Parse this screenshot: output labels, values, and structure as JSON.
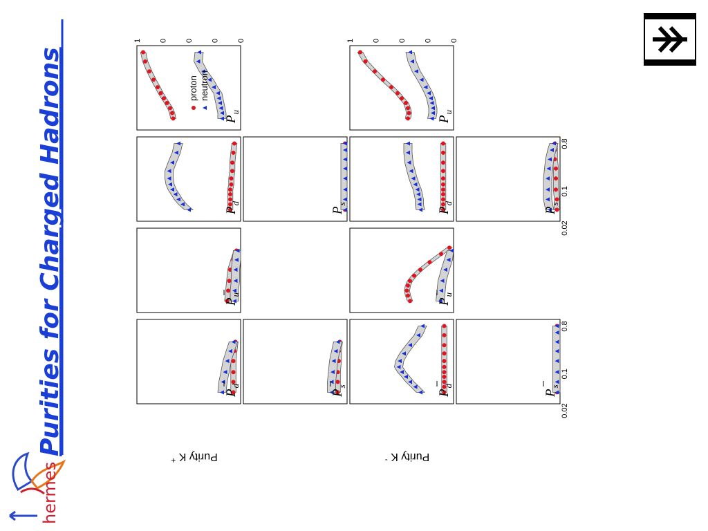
{
  "slide": {
    "title": "Purities for Charged Hadrons",
    "logo_text": "hermes"
  },
  "colors": {
    "title": "#1a3fd6",
    "proton": "#e0141e",
    "neutron": "#1530d8",
    "band": "#d4d4d4",
    "logo_orange": "#e8741a",
    "logo_red": "#cc2030",
    "logo_blue": "#2a49c8"
  },
  "chart_data": {
    "type": "scatter",
    "x_scale": "log",
    "xlim": [
      0.02,
      0.8
    ],
    "ylim": [
      0,
      1
    ],
    "x_tick_labels": [
      "0.02",
      "0.1",
      "0.8"
    ],
    "y_tick_labels": [
      "0",
      "0.25",
      "0.5",
      "0.75",
      "1"
    ],
    "x_tick_values": [
      0.02,
      0.1,
      0.8
    ],
    "y_tick_values": [
      0,
      0.25,
      0.5,
      0.75,
      1
    ],
    "legend": [
      "proton",
      "neutron"
    ],
    "rows": [
      {
        "ylabel": "Purity K",
        "charge": "+",
        "panels": [
          {
            "label": "P",
            "sub": "u",
            "bar": false,
            "series": [
              {
                "name": "proton",
                "marker": "circle",
                "x": [
                  0.033,
                  0.042,
                  0.052,
                  0.065,
                  0.08,
                  0.1,
                  0.13,
                  0.18,
                  0.26,
                  0.4,
                  0.6
                ],
                "y": [
                  0.65,
                  0.66,
                  0.68,
                  0.71,
                  0.74,
                  0.77,
                  0.8,
                  0.84,
                  0.88,
                  0.92,
                  0.94
                ]
              },
              {
                "name": "neutron",
                "marker": "triangle",
                "x": [
                  0.033,
                  0.042,
                  0.052,
                  0.065,
                  0.08,
                  0.1,
                  0.13,
                  0.18,
                  0.26,
                  0.4,
                  0.6
                ],
                "y": [
                  0.18,
                  0.18,
                  0.19,
                  0.2,
                  0.21,
                  0.22,
                  0.26,
                  0.3,
                  0.36,
                  0.41,
                  0.4
                ]
              }
            ]
          },
          {
            "label": "P",
            "sub": "d",
            "bar": false,
            "series": [
              {
                "name": "proton",
                "marker": "circle",
                "x": [
                  0.033,
                  0.042,
                  0.052,
                  0.065,
                  0.08,
                  0.1,
                  0.13,
                  0.18,
                  0.26,
                  0.4,
                  0.6
                ],
                "y": [
                  0.1,
                  0.1,
                  0.1,
                  0.1,
                  0.1,
                  0.09,
                  0.09,
                  0.08,
                  0.08,
                  0.07,
                  0.06
                ]
              },
              {
                "name": "neutron",
                "marker": "triangle",
                "x": [
                  0.033,
                  0.042,
                  0.052,
                  0.065,
                  0.08,
                  0.1,
                  0.13,
                  0.18,
                  0.26,
                  0.4,
                  0.6
                ],
                "y": [
                  0.5,
                  0.56,
                  0.6,
                  0.63,
                  0.66,
                  0.68,
                  0.69,
                  0.69,
                  0.66,
                  0.62,
                  0.6
                ]
              }
            ]
          },
          {
            "label": "P",
            "sub": "u",
            "bar": true,
            "series": [
              {
                "name": "proton",
                "marker": "circle",
                "x": [
                  0.033,
                  0.052,
                  0.08,
                  0.13,
                  0.2,
                  0.3
                ],
                "y": [
                  0.13,
                  0.12,
                  0.11,
                  0.1,
                  0.07,
                  0.04
                ]
              },
              {
                "name": "neutron",
                "marker": "triangle",
                "x": [
                  0.033,
                  0.052,
                  0.08,
                  0.13,
                  0.2,
                  0.3
                ],
                "y": [
                  0.06,
                  0.06,
                  0.05,
                  0.05,
                  0.04,
                  0.03
                ]
              }
            ]
          },
          {
            "label": "P",
            "sub": "d",
            "bar": true,
            "series": [
              {
                "name": "proton",
                "marker": "circle",
                "x": [
                  0.033,
                  0.052,
                  0.08,
                  0.13,
                  0.2,
                  0.3
                ],
                "y": [
                  0.07,
                  0.07,
                  0.07,
                  0.07,
                  0.06,
                  0.05
                ]
              },
              {
                "name": "neutron",
                "marker": "triangle",
                "x": [
                  0.033,
                  0.052,
                  0.08,
                  0.13,
                  0.2,
                  0.3
                ],
                "y": [
                  0.18,
                  0.17,
                  0.15,
                  0.13,
                  0.1,
                  0.07
                ]
              }
            ]
          }
        ]
      },
      {
        "ylabel": "",
        "charge": "",
        "panels": [
          null,
          {
            "label": "P",
            "sub": "s",
            "bar": false,
            "series": [
              {
                "name": "proton",
                "marker": "circle",
                "x": [
                  0.033,
                  0.052,
                  0.08,
                  0.13,
                  0.2,
                  0.3,
                  0.45,
                  0.6
                ],
                "y": [
                  0.02,
                  0.02,
                  0.02,
                  0.02,
                  0.02,
                  0.02,
                  0.02,
                  0.02
                ]
              },
              {
                "name": "neutron",
                "marker": "triangle",
                "x": [
                  0.033,
                  0.052,
                  0.08,
                  0.13,
                  0.2,
                  0.3,
                  0.45,
                  0.6
                ],
                "y": [
                  0.02,
                  0.02,
                  0.02,
                  0.02,
                  0.02,
                  0.02,
                  0.02,
                  0.02
                ]
              }
            ]
          },
          null,
          {
            "label": "P",
            "sub": "s",
            "bar": true,
            "series": [
              {
                "name": "proton",
                "marker": "circle",
                "x": [
                  0.033,
                  0.052,
                  0.08,
                  0.13,
                  0.2,
                  0.3
                ],
                "y": [
                  0.09,
                  0.09,
                  0.09,
                  0.08,
                  0.08,
                  0.07
                ]
              },
              {
                "name": "neutron",
                "marker": "triangle",
                "x": [
                  0.033,
                  0.052,
                  0.08,
                  0.13,
                  0.2,
                  0.3
                ],
                "y": [
                  0.15,
                  0.15,
                  0.14,
                  0.13,
                  0.11,
                  0.09
                ]
              }
            ]
          }
        ]
      },
      {
        "ylabel": "Purity K",
        "charge": "-",
        "panels": [
          {
            "label": "P",
            "sub": "u",
            "bar": false,
            "series": [
              {
                "name": "proton",
                "marker": "circle",
                "x": [
                  0.033,
                  0.042,
                  0.052,
                  0.065,
                  0.08,
                  0.1,
                  0.13,
                  0.18,
                  0.26,
                  0.4,
                  0.6
                ],
                "y": [
                  0.44,
                  0.43,
                  0.44,
                  0.46,
                  0.5,
                  0.54,
                  0.6,
                  0.68,
                  0.76,
                  0.85,
                  0.9
                ]
              },
              {
                "name": "neutron",
                "marker": "triangle",
                "x": [
                  0.033,
                  0.042,
                  0.052,
                  0.065,
                  0.08,
                  0.1,
                  0.13,
                  0.18,
                  0.26,
                  0.4,
                  0.6
                ],
                "y": [
                  0.21,
                  0.2,
                  0.2,
                  0.21,
                  0.22,
                  0.24,
                  0.27,
                  0.31,
                  0.36,
                  0.4,
                  0.42
                ]
              }
            ]
          },
          {
            "label": "P",
            "sub": "d",
            "bar": false,
            "series": [
              {
                "name": "proton",
                "marker": "circle",
                "x": [
                  0.033,
                  0.042,
                  0.052,
                  0.065,
                  0.08,
                  0.1,
                  0.13,
                  0.18,
                  0.26,
                  0.4,
                  0.6
                ],
                "y": [
                  0.1,
                  0.1,
                  0.1,
                  0.1,
                  0.1,
                  0.1,
                  0.1,
                  0.1,
                  0.1,
                  0.1,
                  0.1
                ]
              },
              {
                "name": "neutron",
                "marker": "triangle",
                "x": [
                  0.033,
                  0.042,
                  0.052,
                  0.065,
                  0.08,
                  0.1,
                  0.13,
                  0.18,
                  0.26,
                  0.4,
                  0.6
                ],
                "y": [
                  0.32,
                  0.33,
                  0.33,
                  0.34,
                  0.35,
                  0.37,
                  0.39,
                  0.41,
                  0.43,
                  0.44,
                  0.44
                ]
              }
            ]
          },
          {
            "label": "P",
            "sub": "u",
            "bar": true,
            "series": [
              {
                "name": "proton",
                "marker": "circle",
                "x": [
                  0.033,
                  0.042,
                  0.052,
                  0.065,
                  0.08,
                  0.1,
                  0.13,
                  0.18,
                  0.26,
                  0.34
                ],
                "y": [
                  0.42,
                  0.44,
                  0.45,
                  0.44,
                  0.42,
                  0.38,
                  0.32,
                  0.23,
                  0.12,
                  0.04
                ]
              },
              {
                "name": "neutron",
                "marker": "triangle",
                "x": [
                  0.033,
                  0.052,
                  0.08,
                  0.13,
                  0.2,
                  0.3
                ],
                "y": [
                  0.13,
                  0.12,
                  0.11,
                  0.08,
                  0.05,
                  0.02
                ]
              }
            ]
          },
          {
            "label": "P",
            "sub": "d",
            "bar": true,
            "series": [
              {
                "name": "proton",
                "marker": "circle",
                "x": [
                  0.033,
                  0.042,
                  0.052,
                  0.065,
                  0.08,
                  0.1,
                  0.13,
                  0.18,
                  0.26,
                  0.4,
                  0.6
                ],
                "y": [
                  0.09,
                  0.09,
                  0.09,
                  0.09,
                  0.09,
                  0.09,
                  0.09,
                  0.09,
                  0.09,
                  0.09,
                  0.09
                ]
              },
              {
                "name": "neutron",
                "marker": "triangle",
                "x": [
                  0.033,
                  0.042,
                  0.052,
                  0.065,
                  0.08,
                  0.1,
                  0.13,
                  0.18,
                  0.26,
                  0.4,
                  0.6
                ],
                "y": [
                  0.32,
                  0.37,
                  0.42,
                  0.46,
                  0.5,
                  0.53,
                  0.52,
                  0.48,
                  0.42,
                  0.34,
                  0.3
                ]
              }
            ]
          }
        ]
      },
      {
        "ylabel": "",
        "charge": "",
        "panels": [
          null,
          {
            "label": "P",
            "sub": "s",
            "bar": false,
            "series": [
              {
                "name": "proton",
                "marker": "circle",
                "x": [
                  0.033,
                  0.052,
                  0.08,
                  0.13,
                  0.2,
                  0.3,
                  0.45,
                  0.6
                ],
                "y": [
                  0.03,
                  0.03,
                  0.04,
                  0.04,
                  0.04,
                  0.05,
                  0.05,
                  0.05
                ]
              },
              {
                "name": "neutron",
                "marker": "triangle",
                "x": [
                  0.033,
                  0.052,
                  0.08,
                  0.13,
                  0.2,
                  0.3,
                  0.45,
                  0.6
                ],
                "y": [
                  0.1,
                  0.12,
                  0.12,
                  0.12,
                  0.11,
                  0.1,
                  0.08,
                  0.06
                ]
              }
            ]
          },
          null,
          {
            "label": "P",
            "sub": "s",
            "bar": true,
            "series": [
              {
                "name": "proton",
                "marker": "circle",
                "x": [
                  0.033,
                  0.052,
                  0.08,
                  0.13,
                  0.2,
                  0.3,
                  0.45,
                  0.6
                ],
                "y": [
                  0.03,
                  0.03,
                  0.03,
                  0.03,
                  0.03,
                  0.03,
                  0.03,
                  0.03
                ]
              },
              {
                "name": "neutron",
                "marker": "triangle",
                "x": [
                  0.033,
                  0.052,
                  0.08,
                  0.13,
                  0.2,
                  0.3,
                  0.45,
                  0.6
                ],
                "y": [
                  0.03,
                  0.03,
                  0.03,
                  0.03,
                  0.03,
                  0.03,
                  0.03,
                  0.03
                ]
              }
            ]
          }
        ]
      }
    ]
  }
}
